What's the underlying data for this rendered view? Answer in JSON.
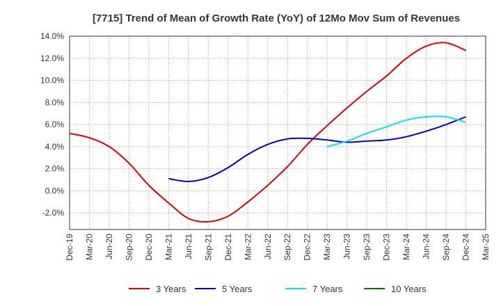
{
  "chart_data": {
    "type": "line",
    "title": "[7715]  Trend of Mean of Growth Rate (YoY) of 12Mo Mov Sum of Revenues",
    "xlabel": "",
    "ylabel": "",
    "ylim": [
      -3.5,
      14.0
    ],
    "grid": true,
    "legend_position": "bottom",
    "x_ticks": [
      "Dec-19",
      "Mar-20",
      "Jun-20",
      "Sep-20",
      "Dec-20",
      "Mar-21",
      "Jun-21",
      "Sep-21",
      "Dec-21",
      "Mar-22",
      "Jun-22",
      "Sep-22",
      "Dec-22",
      "Mar-23",
      "Jun-23",
      "Sep-23",
      "Dec-23",
      "Mar-24",
      "Jun-24",
      "Sep-24",
      "Dec-24",
      "Mar-25"
    ],
    "y_ticks": [
      {
        "value": 14,
        "label": "14.0%"
      },
      {
        "value": 12,
        "label": "12.0%"
      },
      {
        "value": 10,
        "label": "10.0%"
      },
      {
        "value": 8,
        "label": "8.0%"
      },
      {
        "value": 6,
        "label": "6.0%"
      },
      {
        "value": 4,
        "label": "4.0%"
      },
      {
        "value": 2,
        "label": "2.0%"
      },
      {
        "value": 0,
        "label": "0.0%"
      },
      {
        "value": -2,
        "label": "-2.0%"
      }
    ],
    "series": [
      {
        "name": "3 Years",
        "color": "#dd0000",
        "x": [
          0,
          1,
          2,
          3,
          4,
          5,
          6,
          7,
          8,
          9,
          10,
          11,
          12,
          13,
          14,
          15,
          16,
          17,
          18,
          19,
          20
        ],
        "values": [
          5.2,
          4.8,
          4.0,
          2.5,
          0.5,
          -1.1,
          -2.5,
          -2.8,
          -2.3,
          -1.0,
          0.5,
          2.2,
          4.2,
          5.9,
          7.5,
          9.0,
          10.4,
          12.0,
          13.1,
          13.4,
          12.7
        ]
      },
      {
        "name": "5 Years",
        "color": "#0000cc",
        "x": [
          5,
          6,
          7,
          8,
          9,
          10,
          11,
          12,
          13,
          14,
          15,
          16,
          17,
          18,
          19,
          20
        ],
        "values": [
          1.1,
          0.85,
          1.2,
          2.1,
          3.3,
          4.2,
          4.7,
          4.75,
          4.6,
          4.4,
          4.5,
          4.6,
          4.9,
          5.4,
          6.0,
          6.7
        ]
      },
      {
        "name": "7 Years",
        "color": "#00e5ee",
        "x": [
          13,
          14,
          15,
          16,
          17,
          18,
          19,
          20
        ],
        "values": [
          4.0,
          4.5,
          5.2,
          5.8,
          6.4,
          6.7,
          6.7,
          6.2
        ]
      },
      {
        "name": "10 Years",
        "color": "#007700",
        "x": [],
        "values": []
      }
    ]
  }
}
